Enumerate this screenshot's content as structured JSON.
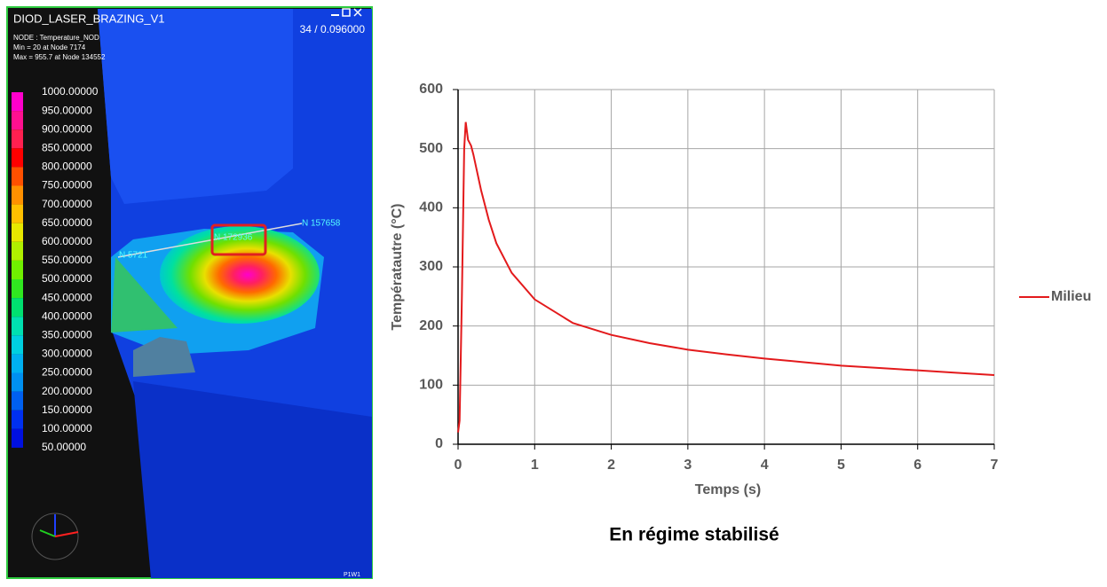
{
  "viewer": {
    "title": "DIOD_LASER_BRAZING_V1",
    "info": [
      "NODE : Temperature_NOD",
      "Min = 20 at Node 7174",
      "Max = 955.7 at Node 134552"
    ],
    "frame": "34 / 0.096000",
    "scale_labels": [
      "1000.00000",
      "950.00000",
      "900.00000",
      "850.00000",
      "800.00000",
      "750.00000",
      "700.00000",
      "650.00000",
      "600.00000",
      "550.00000",
      "500.00000",
      "450.00000",
      "400.00000",
      "350.00000",
      "300.00000",
      "250.00000",
      "200.00000",
      "150.00000",
      "100.00000",
      "50.00000"
    ],
    "nodes": [
      "N 157658",
      "N 172936",
      "N 5721"
    ],
    "viewport": "P1W1"
  },
  "chart_data": {
    "type": "line",
    "x_label": "Temps (s)",
    "y_label": "Températautre (°C)",
    "caption": "En régime stabilisé",
    "x": [
      0,
      0.02,
      0.05,
      0.08,
      0.1,
      0.13,
      0.17,
      0.2,
      0.3,
      0.4,
      0.5,
      0.7,
      1,
      1.5,
      2,
      2.5,
      3,
      3.5,
      4,
      4.5,
      5,
      5.5,
      6,
      6.5,
      7
    ],
    "series": [
      {
        "name": "Milieu",
        "color": "#e31a1c",
        "values": [
          20,
          40,
          250,
          500,
          545,
          515,
          505,
          490,
          430,
          380,
          340,
          290,
          245,
          205,
          185,
          171,
          160,
          152,
          145,
          139,
          133,
          129,
          125,
          121,
          117
        ]
      }
    ],
    "xlim": [
      0,
      7
    ],
    "xticks": [
      0,
      1,
      2,
      3,
      4,
      5,
      6,
      7
    ],
    "ylim": [
      0,
      600
    ],
    "yticks": [
      0,
      100,
      200,
      300,
      400,
      500,
      600
    ],
    "grid": true,
    "legend": "right"
  }
}
